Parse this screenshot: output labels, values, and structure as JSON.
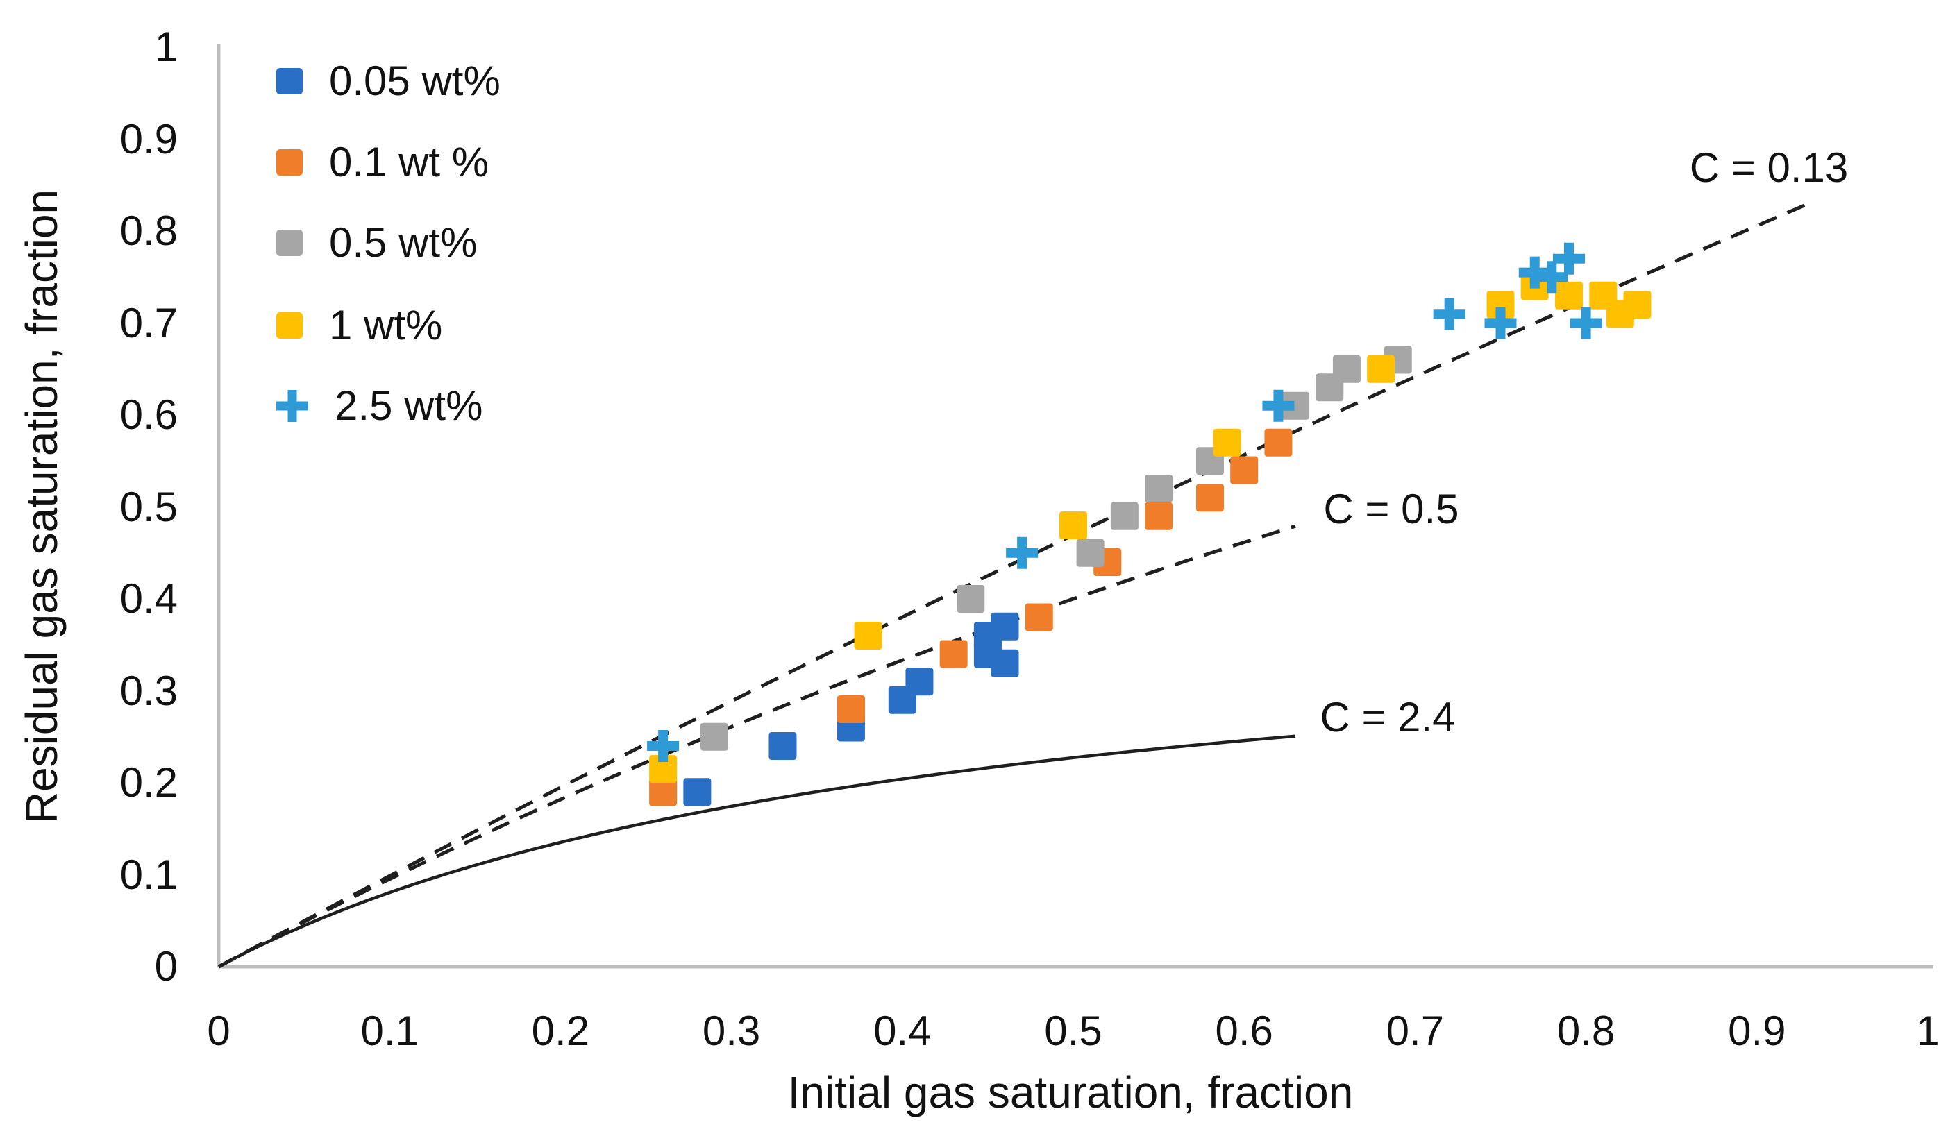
{
  "chart_data": {
    "type": "scatter",
    "xlabel": "Initial gas saturation, fraction",
    "ylabel": "Residual gas saturation, fraction",
    "xlim": [
      0,
      1
    ],
    "ylim": [
      0,
      1
    ],
    "grid": false,
    "legend_position": "top-left-inside",
    "x_ticks": [
      "0",
      "0.1",
      "0.2",
      "0.3",
      "0.4",
      "0.5",
      "0.6",
      "0.7",
      "0.8",
      "0.9",
      "1"
    ],
    "y_ticks": [
      "0",
      "0.1",
      "0.2",
      "0.3",
      "0.4",
      "0.5",
      "0.6",
      "0.7",
      "0.8",
      "0.9",
      "1"
    ],
    "axis_color": "#bdbdbd",
    "line_color": "#1f1f1f",
    "series": [
      {
        "name": "0.05 wt%",
        "marker": "square",
        "color": "#2a6fc6",
        "points": [
          [
            0.28,
            0.19
          ],
          [
            0.33,
            0.24
          ],
          [
            0.37,
            0.26
          ],
          [
            0.4,
            0.29
          ],
          [
            0.41,
            0.31
          ],
          [
            0.45,
            0.34
          ],
          [
            0.45,
            0.36
          ],
          [
            0.46,
            0.37
          ],
          [
            0.46,
            0.33
          ]
        ]
      },
      {
        "name": "0.1 wt %",
        "marker": "square",
        "color": "#ef7d29",
        "points": [
          [
            0.26,
            0.19
          ],
          [
            0.37,
            0.28
          ],
          [
            0.43,
            0.34
          ],
          [
            0.48,
            0.38
          ],
          [
            0.52,
            0.44
          ],
          [
            0.55,
            0.49
          ],
          [
            0.58,
            0.51
          ],
          [
            0.6,
            0.54
          ],
          [
            0.62,
            0.57
          ]
        ]
      },
      {
        "name": "0.5 wt%",
        "marker": "square",
        "color": "#a6a6a6",
        "points": [
          [
            0.29,
            0.25
          ],
          [
            0.44,
            0.4
          ],
          [
            0.51,
            0.45
          ],
          [
            0.53,
            0.49
          ],
          [
            0.55,
            0.52
          ],
          [
            0.58,
            0.55
          ],
          [
            0.63,
            0.61
          ],
          [
            0.65,
            0.63
          ],
          [
            0.66,
            0.65
          ],
          [
            0.69,
            0.66
          ]
        ]
      },
      {
        "name": "1 wt%",
        "marker": "square",
        "color": "#ffc000",
        "points": [
          [
            0.26,
            0.215
          ],
          [
            0.38,
            0.36
          ],
          [
            0.5,
            0.48
          ],
          [
            0.59,
            0.57
          ],
          [
            0.68,
            0.65
          ],
          [
            0.75,
            0.72
          ],
          [
            0.77,
            0.74
          ],
          [
            0.79,
            0.73
          ],
          [
            0.81,
            0.73
          ],
          [
            0.82,
            0.71
          ],
          [
            0.83,
            0.72
          ]
        ]
      },
      {
        "name": "2.5 wt%",
        "marker": "plus",
        "color": "#2e9bd6",
        "points": [
          [
            0.26,
            0.24
          ],
          [
            0.47,
            0.45
          ],
          [
            0.62,
            0.61
          ],
          [
            0.72,
            0.71
          ],
          [
            0.75,
            0.7
          ],
          [
            0.77,
            0.755
          ],
          [
            0.78,
            0.75
          ],
          [
            0.79,
            0.77
          ],
          [
            0.8,
            0.7
          ]
        ]
      }
    ],
    "curves": [
      {
        "label": "C = 0.13",
        "C": 0.13,
        "x_end": 0.93,
        "style": "dashed",
        "label_pos": [
          0.907,
          0.869
        ]
      },
      {
        "label": "C = 0.5",
        "C": 0.5,
        "x_end": 0.63,
        "style": "dashed",
        "label_pos": [
          0.686,
          0.497
        ]
      },
      {
        "label": "C = 2.4",
        "C": 2.4,
        "x_end": 0.63,
        "style": "solid",
        "label_pos": [
          0.684,
          0.271
        ]
      }
    ]
  }
}
